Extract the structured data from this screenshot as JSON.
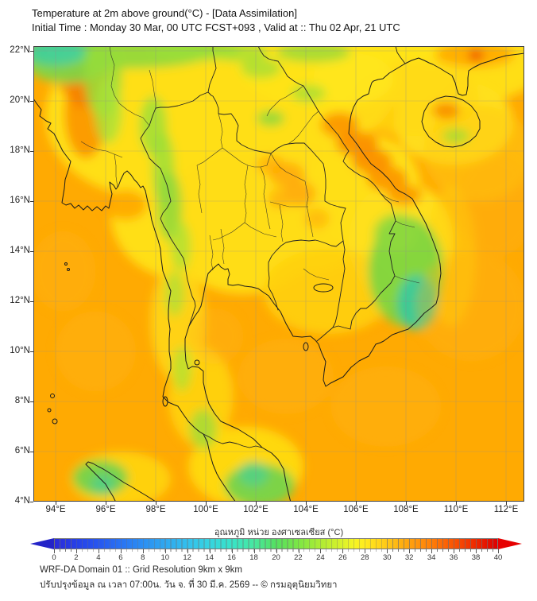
{
  "header": {
    "title": "Temperature at 2m above ground(°C) - [Data Assimilation]",
    "subtitle": "Initial Time : Monday 30 Mar, 00 UTC FCST+093 , Valid at :: Thu 02 Apr, 21 UTC"
  },
  "chart_data": {
    "type": "heatmap",
    "title": "Temperature at 2m above ground(°C) - [Data Assimilation]",
    "field": "2m air temperature",
    "units": "°C",
    "value_range": [
      0,
      40
    ],
    "grid": true,
    "extent": {
      "lon_min": 93.11,
      "lon_max": 112.73,
      "lat_min": 4.0,
      "lat_max": 22.19
    },
    "lon_ticks": [
      {
        "v": 94,
        "label": "94°E"
      },
      {
        "v": 96,
        "label": "96°E"
      },
      {
        "v": 98,
        "label": "98°E"
      },
      {
        "v": 100,
        "label": "100°E"
      },
      {
        "v": 102,
        "label": "102°E"
      },
      {
        "v": 104,
        "label": "104°E"
      },
      {
        "v": 106,
        "label": "106°E"
      },
      {
        "v": 108,
        "label": "108°E"
      },
      {
        "v": 110,
        "label": "110°E"
      },
      {
        "v": 112,
        "label": "112°E"
      }
    ],
    "lat_ticks": [
      {
        "v": 22,
        "label": "22°N"
      },
      {
        "v": 20,
        "label": "20°N"
      },
      {
        "v": 18,
        "label": "18°N"
      },
      {
        "v": 16,
        "label": "16°N"
      },
      {
        "v": 14,
        "label": "14°N"
      },
      {
        "v": 12,
        "label": "12°N"
      },
      {
        "v": 10,
        "label": "10°N"
      },
      {
        "v": 8,
        "label": "8°N"
      },
      {
        "v": 6,
        "label": "6°N"
      },
      {
        "v": 4,
        "label": "4°N"
      }
    ],
    "sea_base": {
      "color": "#ffaa02",
      "approx_temp_c": 30.5
    },
    "regions_format": "[lon, lat, rx_deg, ry_deg, color, opacity, approx_temp_c]",
    "regions": [
      [
        97.6,
        19.4,
        4.0,
        3.2,
        "#ffdf14",
        1,
        27
      ],
      [
        100.6,
        18.6,
        4.2,
        3.4,
        "#ffdf14",
        1,
        27
      ],
      [
        103.5,
        20.4,
        4.0,
        2.6,
        "#ffdf14",
        1,
        27
      ],
      [
        105.6,
        21.6,
        4.5,
        2.0,
        "#ffe318",
        1,
        27
      ],
      [
        109.6,
        21.5,
        4.0,
        1.7,
        "#ffe318",
        0.9,
        27
      ],
      [
        99.0,
        15.5,
        2.8,
        2.6,
        "#ffdf14",
        1,
        27
      ],
      [
        101.5,
        15.1,
        3.2,
        2.8,
        "#ffdd12",
        1,
        27.5
      ],
      [
        104.0,
        15.6,
        3.0,
        2.5,
        "#ffdd12",
        1,
        27.5
      ],
      [
        106.3,
        16.5,
        2.3,
        2.2,
        "#ffdf14",
        1,
        27
      ],
      [
        107.8,
        14.4,
        2.1,
        2.4,
        "#ffe01a",
        1,
        26.5
      ],
      [
        104.9,
        12.4,
        2.6,
        1.7,
        "#ffd012",
        0.9,
        28.5
      ],
      [
        109.9,
        19.15,
        2.4,
        1.7,
        "#ffe01a",
        0.95,
        27
      ],
      [
        108.3,
        20.1,
        2.6,
        1.5,
        "#ffd814",
        0.75,
        28
      ],
      [
        105.9,
        20.9,
        1.6,
        1.0,
        "#ffe51c",
        0.9,
        26.5
      ],
      [
        98.9,
        11.2,
        1.1,
        2.4,
        "#ffd914",
        0.85,
        28
      ],
      [
        99.8,
        8.2,
        1.3,
        2.0,
        "#ffd914",
        0.8,
        28
      ],
      [
        101.6,
        5.4,
        2.3,
        1.6,
        "#ffdd12",
        0.9,
        27.5
      ],
      [
        96.6,
        4.9,
        2.0,
        1.1,
        "#ffd812",
        0.85,
        28
      ],
      [
        109.8,
        13.8,
        1.0,
        2.8,
        "#ffd20e",
        0.55,
        28.5
      ],
      [
        110.9,
        17.9,
        2.2,
        1.9,
        "#ffc90e",
        0.5,
        29
      ],
      [
        95.0,
        21.1,
        1.0,
        1.1,
        "#fb9000",
        0.9,
        32
      ],
      [
        95.2,
        19.5,
        0.85,
        1.8,
        "#fb9000",
        0.85,
        32
      ],
      [
        95.05,
        20.5,
        0.55,
        0.8,
        "#f57e00",
        0.75,
        33
      ],
      [
        105.35,
        19.05,
        0.75,
        0.5,
        "#fb9000",
        0.85,
        32
      ],
      [
        106.05,
        18.3,
        0.85,
        0.5,
        "#fa8800",
        0.85,
        32.5
      ],
      [
        106.65,
        17.6,
        0.8,
        0.5,
        "#fa8800",
        0.85,
        32.5
      ],
      [
        107.25,
        16.9,
        0.8,
        0.5,
        "#fb9000",
        0.85,
        32
      ],
      [
        107.95,
        16.25,
        0.7,
        0.42,
        "#fb9000",
        0.8,
        32
      ],
      [
        109.6,
        19.62,
        0.55,
        0.33,
        "#f88200",
        0.8,
        33
      ],
      [
        110.75,
        21.85,
        1.6,
        0.5,
        "#ff9d00",
        0.75,
        31.5
      ],
      [
        110.8,
        21.82,
        0.3,
        0.24,
        "#ea4000",
        0.8,
        36
      ],
      [
        102.6,
        17.45,
        0.55,
        0.4,
        "#ffae06",
        0.8,
        30.5
      ],
      [
        103.25,
        17.05,
        0.7,
        0.5,
        "#ffa806",
        0.85,
        31
      ],
      [
        103.75,
        16.3,
        0.65,
        0.5,
        "#ffa806",
        0.85,
        31
      ],
      [
        102.95,
        16.1,
        0.45,
        0.4,
        "#ffae06",
        0.75,
        30.5
      ],
      [
        104.45,
        15.3,
        0.5,
        0.4,
        "#ffb00a",
        0.7,
        30
      ],
      [
        96.8,
        15.85,
        0.85,
        0.6,
        "#ffa400",
        0.85,
        31
      ],
      [
        97.0,
        22.0,
        3.4,
        0.7,
        "#8fd83c",
        0.9,
        23
      ],
      [
        94.5,
        21.7,
        1.8,
        1.0,
        "#7bd648",
        0.9,
        22
      ],
      [
        94.0,
        21.95,
        1.2,
        0.55,
        "#3ecfa2",
        0.85,
        19
      ],
      [
        99.6,
        22.05,
        1.8,
        0.45,
        "#9ade38",
        0.8,
        24
      ],
      [
        101.4,
        21.95,
        1.1,
        0.4,
        "#9ade38",
        0.7,
        24
      ],
      [
        104.3,
        21.95,
        1.5,
        0.4,
        "#8fd83c",
        0.75,
        23
      ],
      [
        95.9,
        21.0,
        0.75,
        1.7,
        "#98dc3a",
        0.85,
        23.5
      ],
      [
        96.1,
        19.6,
        0.55,
        1.3,
        "#a8e238",
        0.8,
        24.5
      ],
      [
        97.9,
        19.0,
        0.55,
        1.2,
        "#9ade38",
        0.8,
        24
      ],
      [
        98.3,
        17.3,
        0.45,
        1.5,
        "#9ade38",
        0.8,
        24
      ],
      [
        98.55,
        15.8,
        0.5,
        1.4,
        "#8fd83c",
        0.85,
        23
      ],
      [
        99.0,
        14.2,
        0.4,
        1.0,
        "#a8e238",
        0.75,
        24.5
      ],
      [
        102.6,
        19.3,
        0.55,
        0.32,
        "#86d73e",
        0.8,
        23
      ],
      [
        104.1,
        20.3,
        0.7,
        0.35,
        "#9ade38",
        0.7,
        24
      ],
      [
        102.2,
        21.3,
        0.8,
        0.4,
        "#9ade38",
        0.7,
        24
      ],
      [
        108.0,
        13.2,
        1.5,
        2.2,
        "#79d542",
        0.9,
        22
      ],
      [
        107.6,
        14.7,
        0.9,
        0.8,
        "#8fd83c",
        0.8,
        23
      ],
      [
        108.45,
        11.95,
        0.8,
        1.1,
        "#2fc9a4",
        0.85,
        18
      ],
      [
        98.75,
        12.3,
        0.4,
        0.9,
        "#a8e238",
        0.7,
        24.5
      ],
      [
        99.05,
        9.3,
        0.38,
        0.9,
        "#a8e238",
        0.7,
        24.5
      ],
      [
        99.9,
        6.9,
        0.55,
        0.8,
        "#98dc3a",
        0.75,
        23.5
      ],
      [
        102.15,
        4.65,
        1.4,
        0.85,
        "#6fd34c",
        0.9,
        22
      ],
      [
        101.9,
        5.1,
        0.6,
        0.5,
        "#3ecfa2",
        0.6,
        19
      ],
      [
        95.8,
        4.95,
        1.1,
        0.7,
        "#6fd34c",
        0.9,
        22
      ],
      [
        95.9,
        4.7,
        0.5,
        0.4,
        "#3ecfa2",
        0.6,
        19
      ],
      [
        110.0,
        18.6,
        0.55,
        0.3,
        "#9ade38",
        0.75,
        24
      ],
      [
        95.6,
        10.0,
        1.6,
        1.6,
        "#ffb41e",
        0.4,
        30
      ],
      [
        100.4,
        10.6,
        1.1,
        1.1,
        "#ffb41e",
        0.35,
        30
      ],
      [
        103.2,
        9.0,
        1.9,
        1.5,
        "#ffb41e",
        0.4,
        30
      ],
      [
        107.2,
        7.8,
        2.2,
        1.6,
        "#ffb41e",
        0.4,
        30
      ],
      [
        110.6,
        11.8,
        2.2,
        2.2,
        "#ffb41e",
        0.35,
        30
      ],
      [
        94.3,
        13.2,
        1.3,
        1.6,
        "#ffb41e",
        0.35,
        30
      ],
      [
        111.6,
        15.8,
        1.6,
        2.0,
        "#ffb41e",
        0.3,
        30
      ]
    ]
  },
  "colorbar": {
    "label": "อุณหภูมิ หน่วย องศาเซลเซียส (°C)",
    "tick_values": [
      0,
      2,
      4,
      6,
      8,
      10,
      12,
      14,
      16,
      18,
      20,
      22,
      24,
      26,
      28,
      30,
      32,
      34,
      36,
      38,
      40
    ],
    "left_arrow_color": "#2424c8",
    "right_arrow_color": "#e60000",
    "stops": [
      [
        0,
        "#2b2bd9"
      ],
      [
        2,
        "#2741e8"
      ],
      [
        4,
        "#2757f0"
      ],
      [
        6,
        "#2973f3"
      ],
      [
        8,
        "#2b8ff3"
      ],
      [
        10,
        "#2fa8f0"
      ],
      [
        12,
        "#33c0ee"
      ],
      [
        14,
        "#35d4e0"
      ],
      [
        16,
        "#38e3c8"
      ],
      [
        18,
        "#47e8a0"
      ],
      [
        20,
        "#55e060"
      ],
      [
        22,
        "#7ce645"
      ],
      [
        24,
        "#aeec33"
      ],
      [
        26,
        "#daf22b"
      ],
      [
        27,
        "#f5f525"
      ],
      [
        28,
        "#ffeb1e"
      ],
      [
        30,
        "#ffc917"
      ],
      [
        32,
        "#ffa30e"
      ],
      [
        34,
        "#ff7f08"
      ],
      [
        36,
        "#fa5503"
      ],
      [
        38,
        "#ee2a00"
      ],
      [
        40,
        "#de0000"
      ]
    ]
  },
  "footer": {
    "line1": "WRF-DA Domain 01 :: Grid Resolution 9km x 9km",
    "line2": "ปรับปรุงข้อมูล ณ เวลา 07:00น. วัน จ. ที่ 30 มี.ค. 2569 -- © กรมอุตุนิยมวิทยา"
  }
}
